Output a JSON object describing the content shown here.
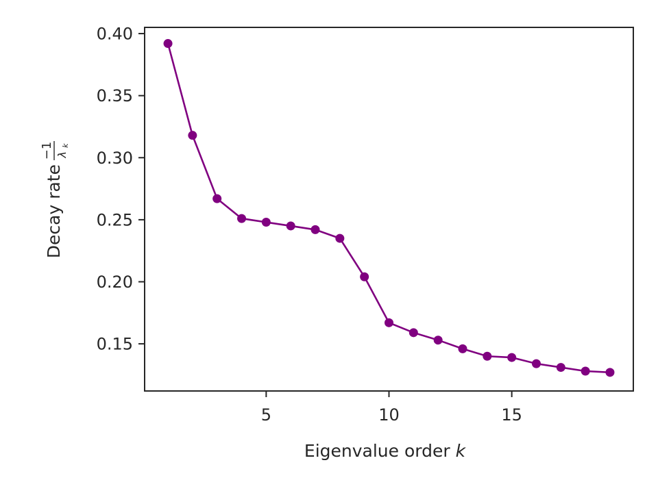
{
  "chart_data": {
    "type": "line",
    "title": "",
    "xlabel": "Eigenvalue order",
    "xlabel_var": "k",
    "ylabel": "Decay rate",
    "ylabel_numerator": "−1",
    "ylabel_denominator": "λ",
    "ylabel_subscript": "k",
    "xlim": [
      0.05,
      19.95
    ],
    "ylim": [
      0.112,
      0.405
    ],
    "xticks": [
      5,
      10,
      15
    ],
    "yticks": [
      0.15,
      0.2,
      0.25,
      0.3,
      0.35,
      0.4
    ],
    "ytick_labels": [
      "0.15",
      "0.20",
      "0.25",
      "0.30",
      "0.35",
      "0.40"
    ],
    "grid": false,
    "line_color": "#800080",
    "series": [
      {
        "x": [
          1,
          2,
          3,
          4,
          5,
          6,
          7,
          8,
          9,
          10,
          11,
          12,
          13,
          14,
          15,
          16,
          17,
          18,
          19
        ],
        "y": [
          0.392,
          0.318,
          0.267,
          0.251,
          0.248,
          0.245,
          0.242,
          0.235,
          0.204,
          0.167,
          0.159,
          0.153,
          0.146,
          0.14,
          0.139,
          0.134,
          0.131,
          0.128,
          0.127
        ]
      }
    ]
  }
}
